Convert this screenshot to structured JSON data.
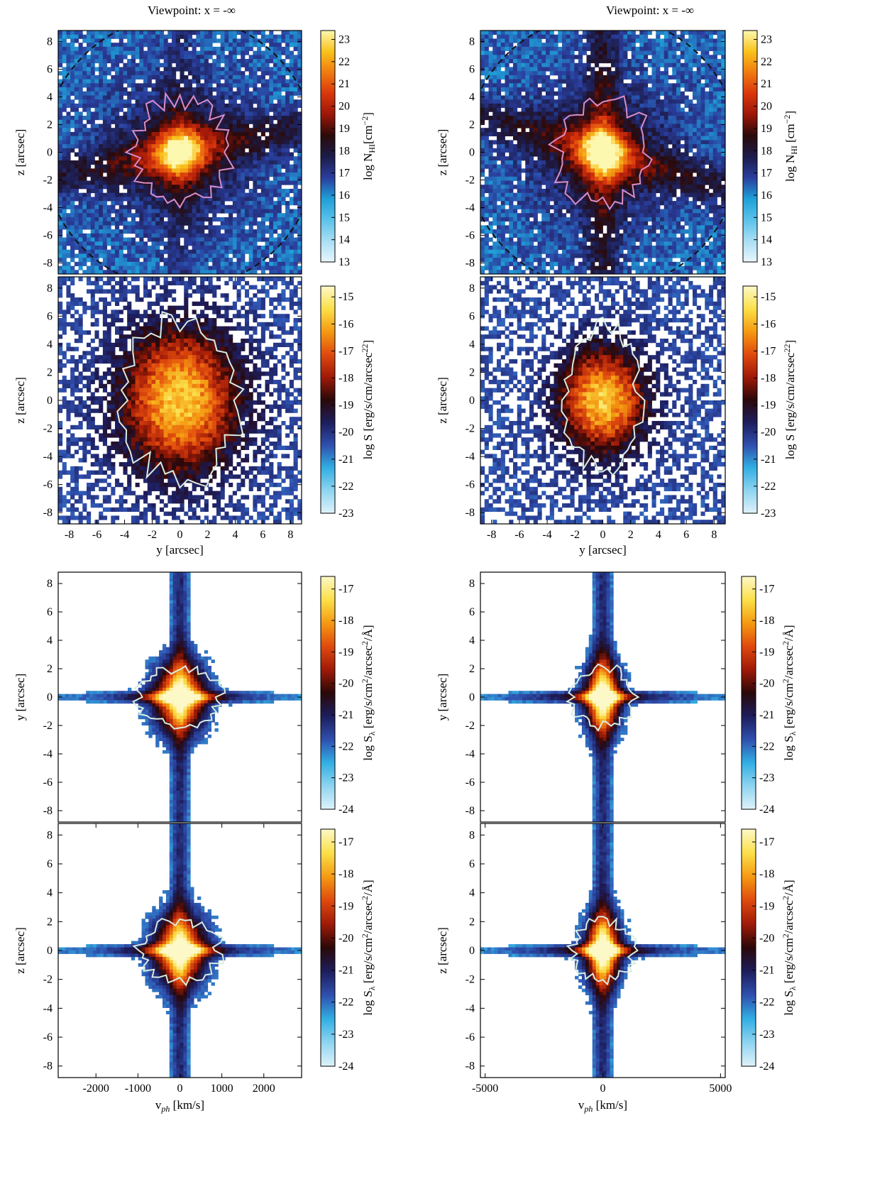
{
  "columns": [
    {
      "title": "Viewpoint: x = -∞"
    },
    {
      "title": "Viewpoint: x = -∞"
    }
  ],
  "colormaps": {
    "nhi": [
      "#e8f6fc",
      "#a9def3",
      "#5bc2eb",
      "#1f9fd8",
      "#2a3e9e",
      "#1c1c4a",
      "#2a0a0a",
      "#9b1608",
      "#d9360c",
      "#f07a10",
      "#f9c21b",
      "#fdf8b0"
    ],
    "sb": [
      "#dff2fa",
      "#8fd4f0",
      "#32aee3",
      "#2f4fae",
      "#1d1d5c",
      "#2a0808",
      "#a01a08",
      "#e04a0e",
      "#f59a12",
      "#fbe04a",
      "#fdf8c8"
    ],
    "contour_nhi": "#d98cc8",
    "contour_sb": "#d8ece0"
  },
  "chart_data": [
    {
      "id": "a1",
      "type": "heatmap",
      "xlim": [
        -8.8,
        8.8
      ],
      "ylim": [
        -8.8,
        8.8
      ],
      "yticks": [
        -8,
        -6,
        -4,
        -2,
        0,
        2,
        4,
        6,
        8
      ],
      "ytick_labels": [
        "-8",
        "-6",
        "-4",
        "-2",
        "0",
        "2",
        "4",
        "6",
        "8"
      ],
      "ylabel": "z [arcsec]",
      "xlabel": "",
      "colorbar": {
        "label": "log Nₕᵢ [cm⁻²]",
        "label_main": "log N",
        "label_sub": "HI",
        "label_unit": "[cm",
        "label_sup": "−2",
        "label_end": "]",
        "range": [
          13,
          23.4
        ],
        "ticks": [
          "13",
          "14",
          "15",
          "16",
          "17",
          "18",
          "19",
          "20",
          "21",
          "22",
          "23"
        ]
      },
      "dashed_circle": true
    },
    {
      "id": "a2",
      "type": "heatmap",
      "xlim": [
        -8.8,
        8.8
      ],
      "ylim": [
        -8.8,
        8.8
      ],
      "xticks": [
        -8,
        -6,
        -4,
        -2,
        0,
        2,
        4,
        6,
        8
      ],
      "xtick_labels": [
        "-8",
        "-6",
        "-4",
        "-2",
        "0",
        "2",
        "4",
        "6",
        "8"
      ],
      "yticks": [
        -8,
        -6,
        -4,
        -2,
        0,
        2,
        4,
        6,
        8
      ],
      "ytick_labels": [
        "-8",
        "-6",
        "-4",
        "-2",
        "0",
        "2",
        "4",
        "6",
        "8"
      ],
      "ylabel": "z [arcsec]",
      "xlabel": "y [arcsec]",
      "colorbar": {
        "label_main": "log S [erg/s/cm",
        "label_sup": "2",
        "label_unit": "/arcsec",
        "label_sup2": "2",
        "label_end": "]",
        "range": [
          -23,
          -14.6
        ],
        "ticks": [
          "-23",
          "-22",
          "-21",
          "-20",
          "-19",
          "-18",
          "-17",
          "-16",
          "-15"
        ]
      }
    },
    {
      "id": "a3",
      "type": "heatmap",
      "xlim": [
        -2900,
        2900
      ],
      "ylim": [
        -8.8,
        8.8
      ],
      "yticks": [
        -8,
        -6,
        -4,
        -2,
        0,
        2,
        4,
        6,
        8
      ],
      "ytick_labels": [
        "-8",
        "-6",
        "-4",
        "-2",
        "0",
        "2",
        "4",
        "6",
        "8"
      ],
      "ylabel": "y [arcsec]",
      "xlabel": "",
      "colorbar": {
        "label_main": "log S",
        "label_sub": "λ",
        "label_unit": " [erg/s/cm",
        "label_sup": "2",
        "label_mid": "/arcsec",
        "label_sup2": "2",
        "label_end": "/Å]",
        "range": [
          -24,
          -16.6
        ],
        "ticks": [
          "-24",
          "-23",
          "-22",
          "-21",
          "-20",
          "-19",
          "-18",
          "-17"
        ]
      }
    },
    {
      "id": "a4",
      "type": "heatmap",
      "xlim": [
        -2900,
        2900
      ],
      "ylim": [
        -8.8,
        8.8
      ],
      "xticks": [
        -2000,
        -1000,
        0,
        1000,
        2000
      ],
      "xtick_labels": [
        "-2000",
        "-1000",
        "0",
        "1000",
        "2000"
      ],
      "yticks": [
        -8,
        -6,
        -4,
        -2,
        0,
        2,
        4,
        6,
        8
      ],
      "ytick_labels": [
        "-8",
        "-6",
        "-4",
        "-2",
        "0",
        "2",
        "4",
        "6",
        "8"
      ],
      "ylabel": "z [arcsec]",
      "xlabel_main": "v",
      "xlabel_sub": "ph",
      "xlabel_end": " [km/s]",
      "colorbar": {
        "label_main": "log S",
        "label_sub": "λ",
        "label_unit": " [erg/s/cm",
        "label_sup": "2",
        "label_mid": "/arcsec",
        "label_sup2": "2",
        "label_end": "/Å]",
        "range": [
          -24,
          -16.6
        ],
        "ticks": [
          "-24",
          "-23",
          "-22",
          "-21",
          "-20",
          "-19",
          "-18",
          "-17"
        ]
      }
    },
    {
      "id": "b1",
      "type": "heatmap",
      "xlim": [
        -8.8,
        8.8
      ],
      "ylim": [
        -8.8,
        8.8
      ],
      "yticks": [
        -8,
        -6,
        -4,
        -2,
        0,
        2,
        4,
        6,
        8
      ],
      "ytick_labels": [
        "-8",
        "-6",
        "-4",
        "-2",
        "0",
        "2",
        "4",
        "6",
        "8"
      ],
      "ylabel": "z [arcsec]",
      "xlabel": "",
      "colorbar": {
        "label_main": "log N",
        "label_sub": "HI",
        "label_unit": " [cm",
        "label_sup": "−2",
        "label_end": "]",
        "range": [
          13,
          23.4
        ],
        "ticks": [
          "13",
          "14",
          "15",
          "16",
          "17",
          "18",
          "19",
          "20",
          "21",
          "22",
          "23"
        ]
      },
      "dashed_circle": true
    },
    {
      "id": "b2",
      "type": "heatmap",
      "xlim": [
        -8.8,
        8.8
      ],
      "ylim": [
        -8.8,
        8.8
      ],
      "xticks": [
        -8,
        -6,
        -4,
        -2,
        0,
        2,
        4,
        6,
        8
      ],
      "xtick_labels": [
        "-8",
        "-6",
        "-4",
        "-2",
        "0",
        "2",
        "4",
        "6",
        "8"
      ],
      "yticks": [
        -8,
        -6,
        -4,
        -2,
        0,
        2,
        4,
        6,
        8
      ],
      "ytick_labels": [
        "-8",
        "-6",
        "-4",
        "-2",
        "0",
        "2",
        "4",
        "6",
        "8"
      ],
      "ylabel": "z [arcsec]",
      "xlabel": "y [arcsec]",
      "colorbar": {
        "label_main": "log S [erg/s/cm",
        "label_sup": "2",
        "label_unit": "/arcsec",
        "label_sup2": "2",
        "label_end": "]",
        "range": [
          -23,
          -14.6
        ],
        "ticks": [
          "-23",
          "-22",
          "-21",
          "-20",
          "-19",
          "-18",
          "-17",
          "-16",
          "-15"
        ]
      }
    },
    {
      "id": "b3",
      "type": "heatmap",
      "xlim": [
        -5200,
        5200
      ],
      "ylim": [
        -8.8,
        8.8
      ],
      "yticks": [
        -8,
        -6,
        -4,
        -2,
        0,
        2,
        4,
        6,
        8
      ],
      "ytick_labels": [
        "-8",
        "-6",
        "-4",
        "-2",
        "0",
        "2",
        "4",
        "6",
        "8"
      ],
      "ylabel": "y [arcsec]",
      "xlabel": "",
      "colorbar": {
        "label_main": "log S",
        "label_sub": "λ",
        "label_unit": " [erg/s/cm",
        "label_sup": "2",
        "label_mid": "/arcsec",
        "label_sup2": "2",
        "label_end": "/Å]",
        "range": [
          -24,
          -16.6
        ],
        "ticks": [
          "-24",
          "-23",
          "-22",
          "-21",
          "-20",
          "-19",
          "-18",
          "-17"
        ]
      }
    },
    {
      "id": "b4",
      "type": "heatmap",
      "xlim": [
        -5200,
        5200
      ],
      "ylim": [
        -8.8,
        8.8
      ],
      "xticks": [
        -5000,
        0,
        5000
      ],
      "xtick_labels": [
        "-5000",
        "0",
        "5000"
      ],
      "yticks": [
        -8,
        -6,
        -4,
        -2,
        0,
        2,
        4,
        6,
        8
      ],
      "ytick_labels": [
        "-8",
        "-6",
        "-4",
        "-2",
        "0",
        "2",
        "4",
        "6",
        "8"
      ],
      "ylabel": "z [arcsec]",
      "xlabel_main": "v",
      "xlabel_sub": "ph",
      "xlabel_end": " [km/s]",
      "colorbar": {
        "label_main": "log S",
        "label_sub": "λ",
        "label_unit": " [erg/s/cm",
        "label_sup": "2",
        "label_mid": "/arcsec",
        "label_sup2": "2",
        "label_end": "/Å]",
        "range": [
          -24,
          -16.6
        ],
        "ticks": [
          "-24",
          "-23",
          "-22",
          "-21",
          "-20",
          "-19",
          "-18",
          "-17"
        ]
      }
    }
  ]
}
